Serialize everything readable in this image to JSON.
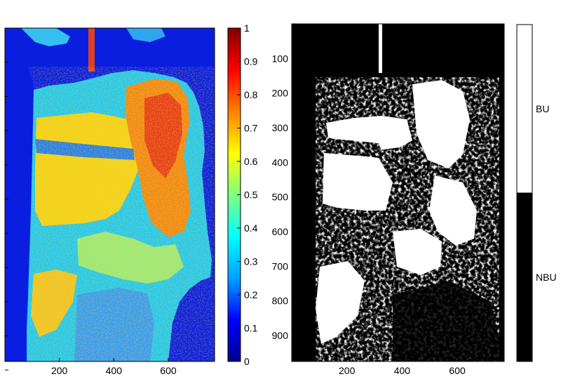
{
  "colors": {
    "jet_stops": [
      "#00008f",
      "#0000ff",
      "#00a0ff",
      "#00ffff",
      "#80ff80",
      "#ffff00",
      "#ff8000",
      "#ff0000",
      "#800000"
    ],
    "mask_built": "#ffffff",
    "mask_non_built": "#000000",
    "frame": "#000000"
  },
  "left_panel": {
    "x_ticks": [
      "200",
      "400",
      "600"
    ],
    "y_ticks": [
      "",
      "",
      "",
      "",
      "",
      "",
      "",
      "",
      "",
      ""
    ]
  },
  "colorbar_left": {
    "ticks": [
      "1",
      "0.9",
      "0.8",
      "0.7",
      "0.6",
      "0.5",
      "0.4",
      "0.3",
      "0.2",
      "0.1",
      "0"
    ]
  },
  "right_panel": {
    "x_ticks": [
      "200",
      "400",
      "600"
    ],
    "y_ticks": [
      "100",
      "200",
      "300",
      "400",
      "500",
      "600",
      "700",
      "800",
      "900"
    ]
  },
  "colorbar_right": {
    "labels": [
      "BU",
      "NBU"
    ],
    "split_fraction": 0.5
  }
}
